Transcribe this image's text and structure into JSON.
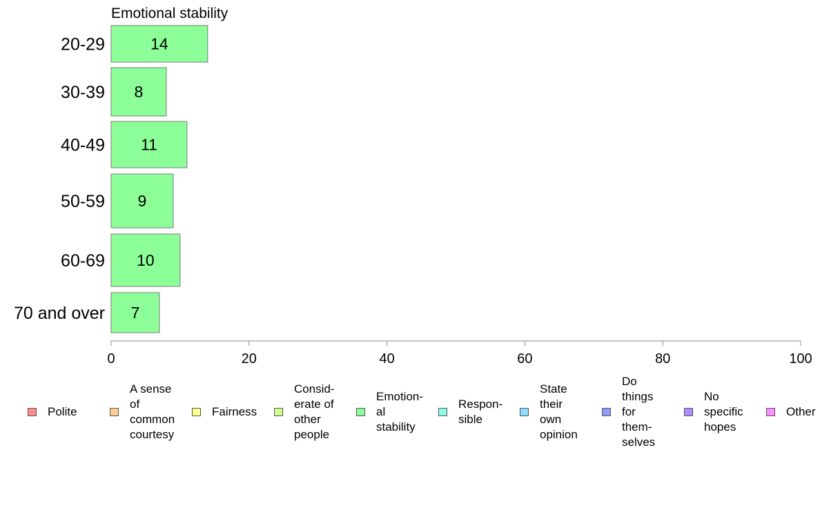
{
  "chart_data": {
    "type": "bar",
    "orientation": "horizontal",
    "title": "Emotional stability",
    "categories": [
      "20-29",
      "30-39",
      "40-49",
      "50-59",
      "60-69",
      "70 and over"
    ],
    "values": [
      14,
      8,
      11,
      9,
      10,
      7
    ],
    "xlim": [
      0,
      100
    ],
    "xticks": [
      0,
      20,
      40,
      60,
      80,
      100
    ],
    "grid": false,
    "bar_color": "#8cff99",
    "legend_position": "bottom",
    "legend": [
      {
        "label": "Polite",
        "color": "#ff8c8c"
      },
      {
        "label": "A sense\nof\ncommon\ncourtesy",
        "color": "#ffcc8c"
      },
      {
        "label": "Fairness",
        "color": "#ffff8c"
      },
      {
        "label": "Consid-\nerate of\nother\npeople",
        "color": "#ccff8c"
      },
      {
        "label": "Emotion-\nal\nstability",
        "color": "#8cff99"
      },
      {
        "label": "Respon-\nsible",
        "color": "#8cffe6"
      },
      {
        "label": "State\ntheir\nown\nopinion",
        "color": "#8cdcff"
      },
      {
        "label": "Do\nthings\nfor\nthem-\nselves",
        "color": "#8c9cff"
      },
      {
        "label": "No\nspecific\nhopes",
        "color": "#b08cff"
      },
      {
        "label": "Other",
        "color": "#ff8cff"
      }
    ]
  }
}
